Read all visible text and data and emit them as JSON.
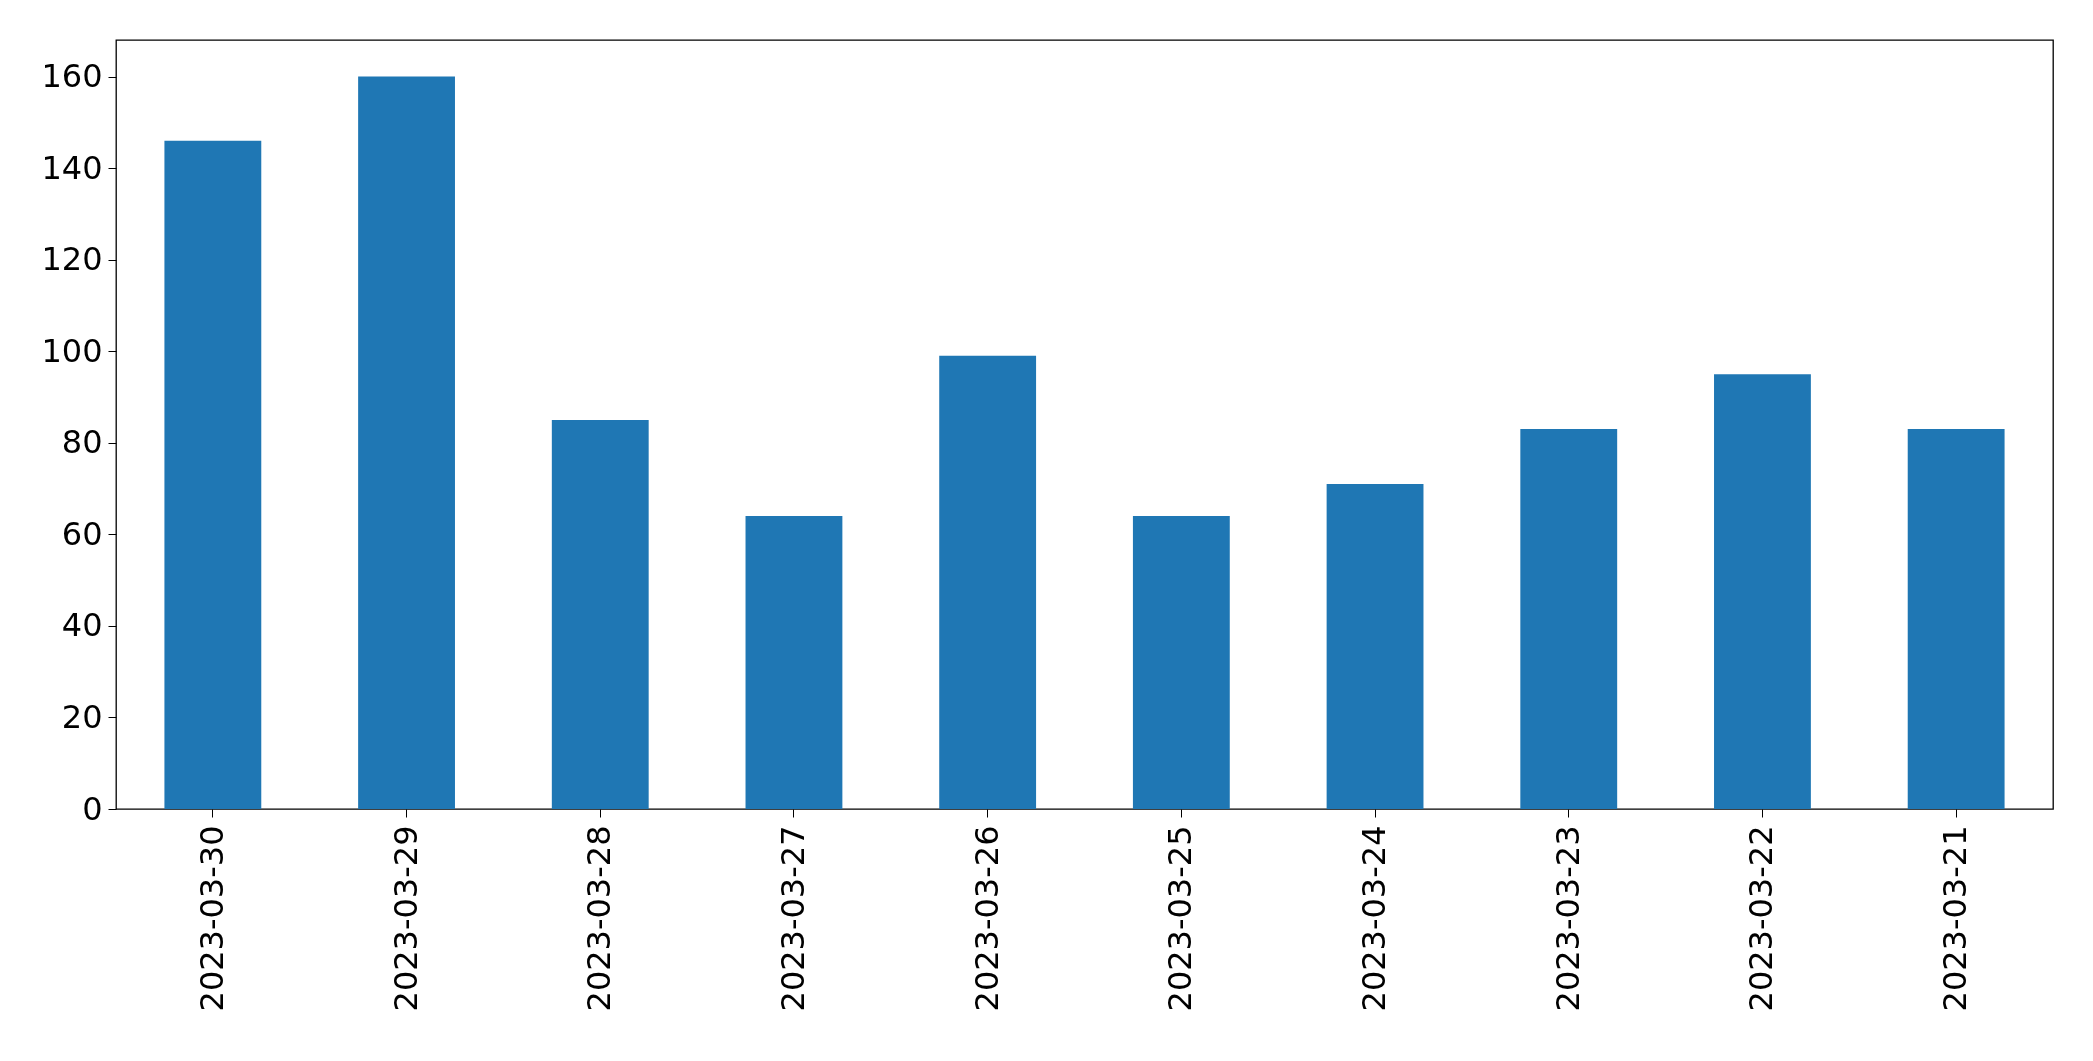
{
  "chart_data": {
    "type": "bar",
    "categories": [
      "2023-03-30",
      "2023-03-29",
      "2023-03-28",
      "2023-03-27",
      "2023-03-26",
      "2023-03-25",
      "2023-03-24",
      "2023-03-23",
      "2023-03-22",
      "2023-03-21"
    ],
    "values": [
      146,
      160,
      85,
      64,
      99,
      64,
      71,
      83,
      95,
      83
    ],
    "color": "#1f77b4",
    "ylim": [
      0,
      168
    ],
    "yticks": [
      0,
      20,
      40,
      60,
      80,
      100,
      120,
      140,
      160
    ],
    "grid": false
  }
}
